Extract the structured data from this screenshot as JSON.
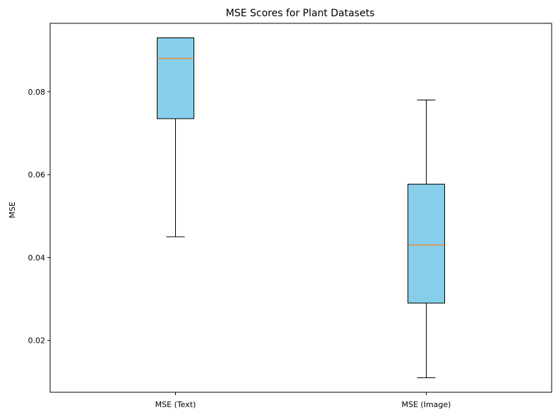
{
  "chart_data": {
    "type": "box",
    "title": "MSE Scores for Plant Datasets",
    "xlabel": "",
    "ylabel": "MSE",
    "categories": [
      "MSE (Text)",
      "MSE (Image)"
    ],
    "boxes": [
      {
        "whisker_low": 0.045,
        "q1": 0.0735,
        "median": 0.088,
        "q3": 0.093,
        "whisker_high": 0.093
      },
      {
        "whisker_low": 0.011,
        "q1": 0.029,
        "median": 0.043,
        "q3": 0.0577,
        "whisker_high": 0.078
      }
    ],
    "ylim": [
      0.0075,
      0.0965
    ],
    "yticks": [
      0.02,
      0.04,
      0.06,
      0.08
    ],
    "ytick_labels": [
      "0.02",
      "0.04",
      "0.06",
      "0.08"
    ],
    "grid": false,
    "colors": {
      "box_fill": "#87ceeb",
      "box_edge": "#000000",
      "median": "#ff7f0e"
    }
  }
}
